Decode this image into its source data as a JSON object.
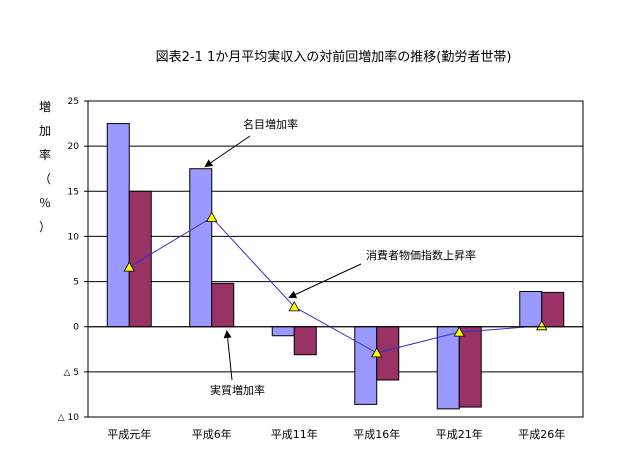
{
  "chart_data": {
    "type": "bar",
    "title": "図表2-1 1か月平均実収入の対前回増加率の推移(勤労者世帯)",
    "ylabel": "増加率（％）",
    "ylabel_chars": [
      "増",
      "加",
      "率",
      "（",
      "％",
      "）"
    ],
    "categories": [
      "平成元年",
      "平成6年",
      "平成11年",
      "平成16年",
      "平成21年",
      "平成26年"
    ],
    "ylim": [
      -10,
      25
    ],
    "yticks": [
      25,
      20,
      15,
      10,
      5,
      0,
      -5,
      -10
    ],
    "ytick_labels": [
      "25",
      "20",
      "15",
      "10",
      "5",
      "0",
      "△ 5",
      "△ 10"
    ],
    "grid": true,
    "series": [
      {
        "name": "名目増加率",
        "type": "bar",
        "color": "#9999ff",
        "values": [
          22.5,
          17.5,
          -1.0,
          -8.6,
          -9.1,
          3.9
        ]
      },
      {
        "name": "実質増加率",
        "type": "bar",
        "color": "#993366",
        "values": [
          15.0,
          4.8,
          -3.1,
          -5.9,
          -8.9,
          3.8
        ]
      },
      {
        "name": "消費者物価指数上昇率",
        "type": "line",
        "color": "#3333cc",
        "marker_color": "#ffff00",
        "values": [
          6.6,
          12.1,
          2.2,
          -2.9,
          -0.6,
          0.1
        ]
      }
    ],
    "annotations": [
      "名目増加率",
      "消費者物価指数上昇率",
      "実質増加率"
    ]
  }
}
